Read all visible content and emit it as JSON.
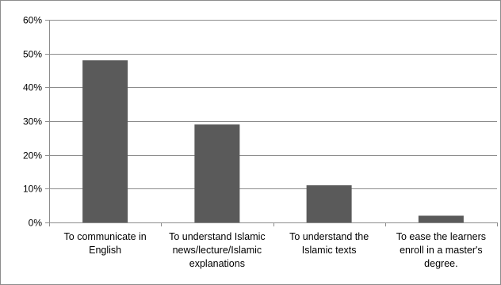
{
  "chart_data": {
    "type": "bar",
    "categories": [
      "To communicate in English",
      "To understand Islamic news/lecture/Islamic explanations",
      "To understand the Islamic texts",
      "To ease the learners enroll in a master's degree."
    ],
    "values": [
      48,
      29,
      11,
      2
    ],
    "ylim": [
      0,
      60
    ],
    "yticks": [
      0,
      10,
      20,
      30,
      40,
      50,
      60
    ],
    "ytick_labels": [
      "0%",
      "10%",
      "20%",
      "30%",
      "40%",
      "50%",
      "60%"
    ],
    "grid": true,
    "legend": "none",
    "colors": {
      "bar": "#5a5a5a",
      "grid": "#8c8c8c",
      "axis": "#8c8c8c"
    }
  }
}
